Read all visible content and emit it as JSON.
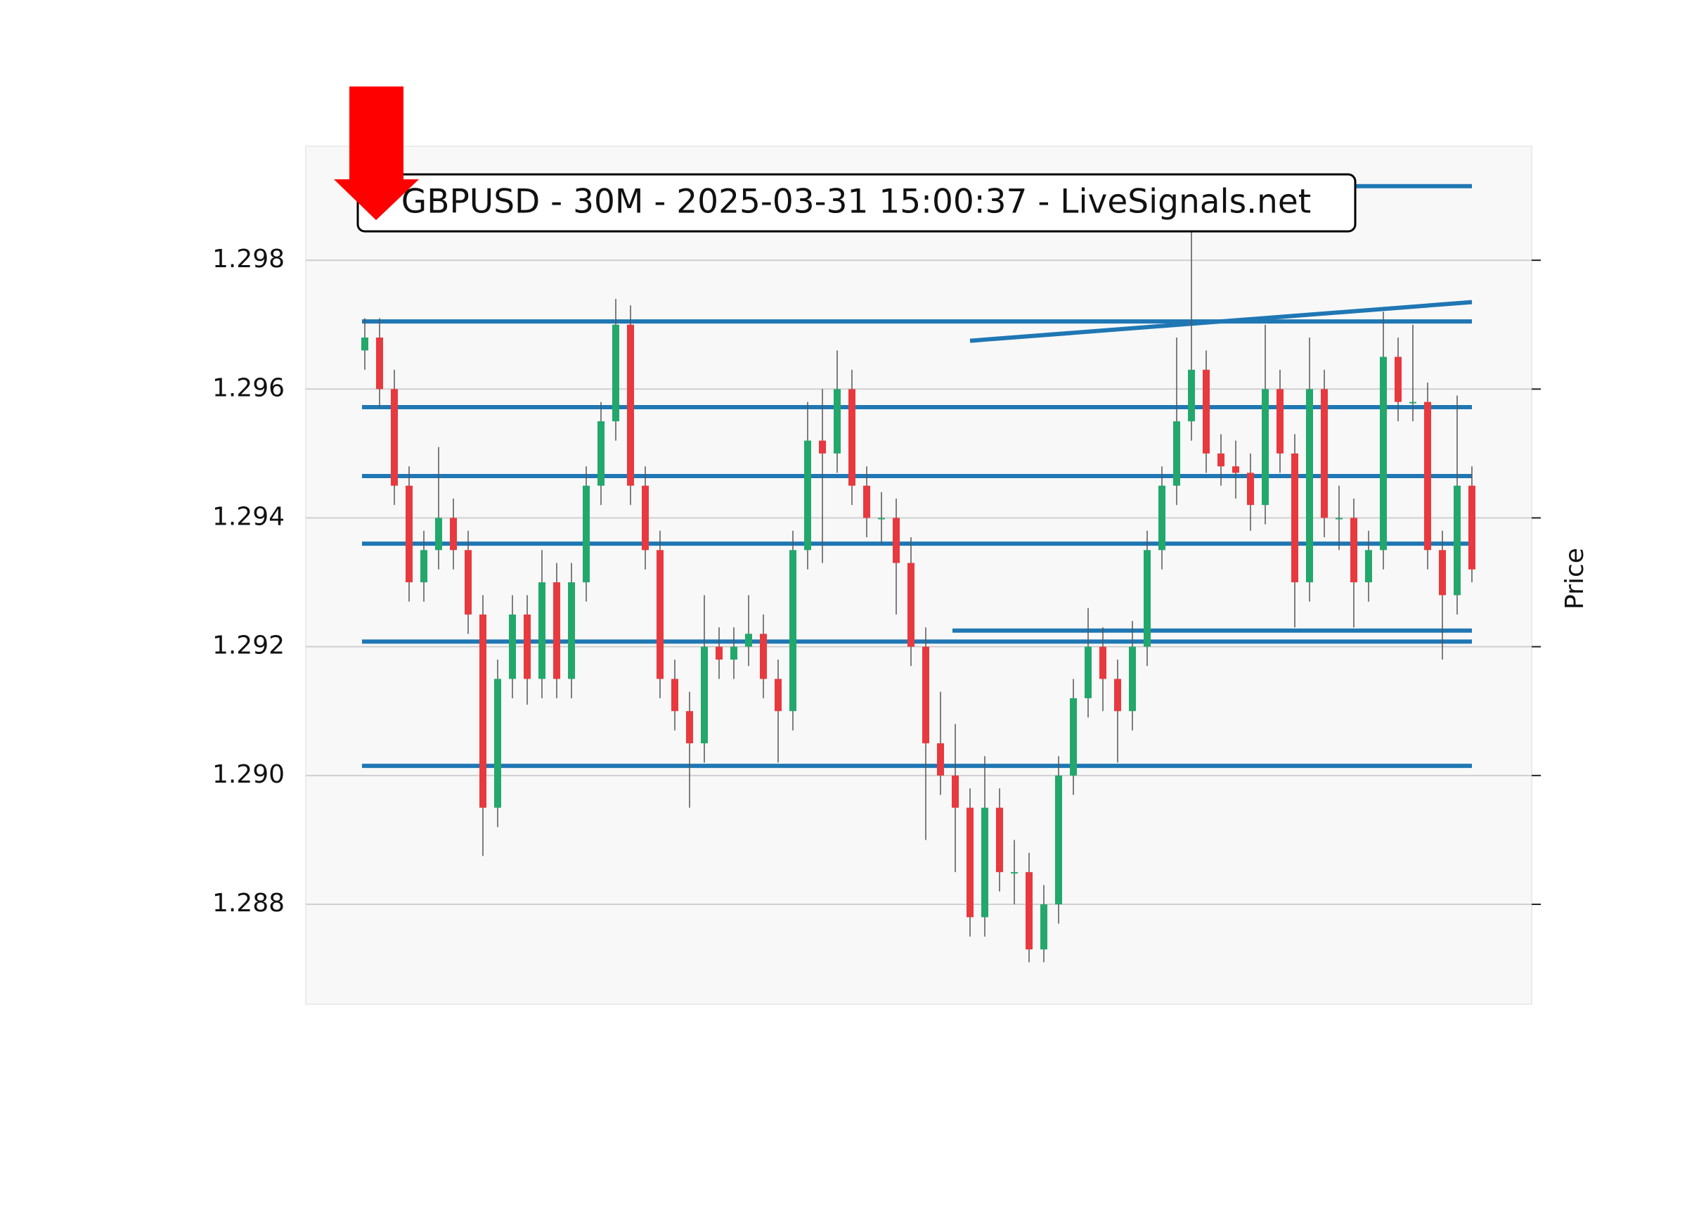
{
  "chart_data": {
    "type": "candlestick",
    "title": "GBPUSD - 30M - 2025-03-31 15:00:37 - LiveSignals.net",
    "y_label": "Price",
    "ylim": [
      1.28645,
      1.29977
    ],
    "yticks": [
      1.288,
      {
        "value": 1.29,
        "label": "1.290"
      },
      1.292,
      1.294,
      1.296,
      1.298
    ],
    "grid": true,
    "up_color": "#22a86b",
    "down_color": "#e8393e",
    "level_color": "#1f77b4",
    "open": [
      1.2966,
      1.2968,
      1.296,
      1.2945,
      1.293,
      1.2935,
      1.294,
      1.2935,
      1.2925,
      1.2895,
      1.2915,
      1.2925,
      1.2915,
      1.293,
      1.2915,
      1.293,
      1.2945,
      1.2955,
      1.297,
      1.2945,
      1.2935,
      1.2915,
      1.291,
      1.2905,
      1.292,
      1.2918,
      1.292,
      1.2922,
      1.2915,
      1.291,
      1.2935,
      1.2952,
      1.295,
      1.296,
      1.2945,
      1.294,
      1.294,
      1.2933,
      1.292,
      1.2905,
      1.29,
      1.2895,
      1.2878,
      1.2895,
      1.2885,
      1.2885,
      1.2873,
      1.288,
      1.29,
      1.2912,
      1.292,
      1.2915,
      1.291,
      1.292,
      1.2935,
      1.2945,
      1.2955,
      1.2963,
      1.295,
      1.2948,
      1.2947,
      1.2942,
      1.296,
      1.295,
      1.293,
      1.296,
      1.294,
      1.294,
      1.293,
      1.2935,
      1.2965,
      1.2958,
      1.2958,
      1.2935,
      1.2928,
      1.2945
    ],
    "high": [
      1.2971,
      1.2971,
      1.2963,
      1.2948,
      1.2938,
      1.2951,
      1.2943,
      1.2938,
      1.2928,
      1.2918,
      1.2928,
      1.2928,
      1.2935,
      1.2933,
      1.2933,
      1.2948,
      1.2958,
      1.2974,
      1.2973,
      1.2948,
      1.2938,
      1.2918,
      1.2913,
      1.2928,
      1.2923,
      1.2923,
      1.2928,
      1.2925,
      1.2918,
      1.2938,
      1.2958,
      1.296,
      1.2966,
      1.2963,
      1.2948,
      1.2944,
      1.2943,
      1.2937,
      1.2923,
      1.2913,
      1.2908,
      1.2898,
      1.2903,
      1.2898,
      1.289,
      1.2888,
      1.2883,
      1.2903,
      1.2915,
      1.2926,
      1.2923,
      1.2918,
      1.2924,
      1.2938,
      1.2948,
      1.2968,
      1.2985,
      1.2966,
      1.2953,
      1.2952,
      1.295,
      1.297,
      1.2963,
      1.2953,
      1.2968,
      1.2963,
      1.2945,
      1.2943,
      1.2938,
      1.2972,
      1.2968,
      1.297,
      1.2961,
      1.2938,
      1.2959,
      1.2948
    ],
    "low": [
      1.2963,
      1.2957,
      1.2942,
      1.2927,
      1.2927,
      1.2932,
      1.2932,
      1.2922,
      1.28875,
      1.2892,
      1.2912,
      1.2911,
      1.2912,
      1.2912,
      1.2912,
      1.2927,
      1.2942,
      1.2952,
      1.2942,
      1.2932,
      1.2912,
      1.2907,
      1.2895,
      1.2902,
      1.2915,
      1.2915,
      1.2917,
      1.2912,
      1.2902,
      1.2907,
      1.2932,
      1.2933,
      1.2947,
      1.2942,
      1.2937,
      1.2936,
      1.2925,
      1.2917,
      1.289,
      1.2897,
      1.2885,
      1.2875,
      1.2875,
      1.2882,
      1.288,
      1.2871,
      1.2871,
      1.2877,
      1.2897,
      1.2909,
      1.291,
      1.2902,
      1.2907,
      1.2917,
      1.2932,
      1.2942,
      1.2952,
      1.2947,
      1.2945,
      1.2943,
      1.2938,
      1.2939,
      1.2947,
      1.2923,
      1.2927,
      1.2937,
      1.2935,
      1.2923,
      1.2927,
      1.2932,
      1.2955,
      1.2955,
      1.2932,
      1.2918,
      1.2925,
      1.293
    ],
    "close": [
      1.2968,
      1.296,
      1.2945,
      1.293,
      1.2935,
      1.294,
      1.2935,
      1.2925,
      1.2895,
      1.2915,
      1.2925,
      1.2915,
      1.293,
      1.2915,
      1.293,
      1.2945,
      1.2955,
      1.297,
      1.2945,
      1.2935,
      1.2915,
      1.291,
      1.2905,
      1.292,
      1.2918,
      1.292,
      1.2922,
      1.2915,
      1.291,
      1.2935,
      1.2952,
      1.295,
      1.296,
      1.2945,
      1.294,
      1.294,
      1.2933,
      1.292,
      1.2905,
      1.29,
      1.2895,
      1.2878,
      1.2895,
      1.2885,
      1.2885,
      1.2873,
      1.288,
      1.29,
      1.2912,
      1.292,
      1.2915,
      1.291,
      1.292,
      1.2935,
      1.2945,
      1.2955,
      1.2963,
      1.295,
      1.2948,
      1.2947,
      1.2942,
      1.296,
      1.295,
      1.293,
      1.296,
      1.294,
      1.294,
      1.293,
      1.2935,
      1.2965,
      1.2958,
      1.2958,
      1.2935,
      1.2928,
      1.2945,
      1.2932
    ],
    "levels": [
      {
        "from": 0,
        "value": 1.29705
      },
      {
        "from": 0,
        "value": 1.29572
      },
      {
        "from": 0,
        "value": 1.29465
      },
      {
        "from": 0,
        "value": 1.2936
      },
      {
        "from": 0,
        "value": 1.29208
      },
      {
        "from": 0,
        "value": 1.29015
      },
      {
        "from": 40,
        "value": 1.29225
      },
      {
        "from": 66,
        "value": 1.29915
      }
    ],
    "trendline": {
      "from": 41,
      "values": [
        1.29675,
        1.29735
      ]
    }
  }
}
